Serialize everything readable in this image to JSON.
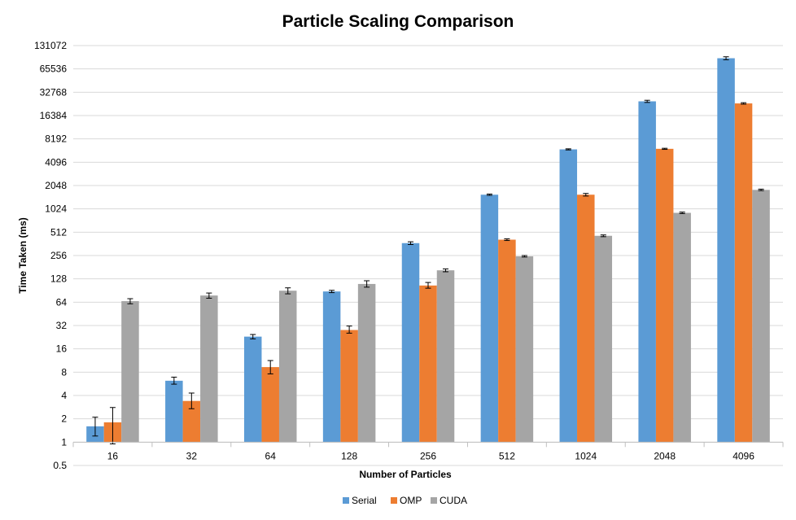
{
  "chart_data": {
    "type": "bar",
    "title": "Particle Scaling Comparison",
    "xlabel": "Number of Particles",
    "ylabel": "Time Taken (ms)",
    "yscale": "log2",
    "ylim": [
      0.5,
      131072
    ],
    "yticks": [
      0.5,
      1,
      2,
      4,
      8,
      16,
      32,
      64,
      128,
      256,
      512,
      1024,
      2048,
      4096,
      8192,
      16384,
      32768,
      65536,
      131072
    ],
    "grid": true,
    "legend_position": "bottom",
    "categories": [
      "16",
      "32",
      "64",
      "128",
      "256",
      "512",
      "1024",
      "2048",
      "4096"
    ],
    "series": [
      {
        "name": "Serial",
        "color": "#5b9bd5",
        "values": [
          1.6,
          6.2,
          23,
          88,
          370,
          1560,
          6000,
          25000,
          90000
        ],
        "errors": [
          [
            1.2,
            2.1
          ],
          [
            5.6,
            6.9
          ],
          [
            21.5,
            24.5
          ],
          [
            85,
            91
          ],
          [
            355,
            385
          ],
          [
            1530,
            1590
          ],
          [
            5900,
            6100
          ],
          [
            24200,
            25800
          ],
          [
            86000,
            94000
          ]
        ]
      },
      {
        "name": "OMP",
        "color": "#ed7d31",
        "values": [
          1.8,
          3.4,
          9.3,
          28,
          105,
          410,
          1560,
          6100,
          23500
        ],
        "errors": [
          [
            0.95,
            2.8
          ],
          [
            2.7,
            4.3
          ],
          [
            7.6,
            11.3
          ],
          [
            25.5,
            31.5
          ],
          [
            97,
            115
          ],
          [
            400,
            420
          ],
          [
            1500,
            1620
          ],
          [
            6000,
            6200
          ],
          [
            23000,
            24000
          ]
        ]
      },
      {
        "name": "CUDA",
        "color": "#a5a5a5",
        "values": [
          66,
          78,
          90,
          110,
          165,
          250,
          460,
          910,
          1800
        ],
        "errors": [
          [
            61,
            71
          ],
          [
            72,
            84
          ],
          [
            82,
            98
          ],
          [
            100,
            121
          ],
          [
            158,
            172
          ],
          [
            245,
            256
          ],
          [
            448,
            472
          ],
          [
            890,
            930
          ],
          [
            1760,
            1840
          ]
        ]
      }
    ]
  }
}
